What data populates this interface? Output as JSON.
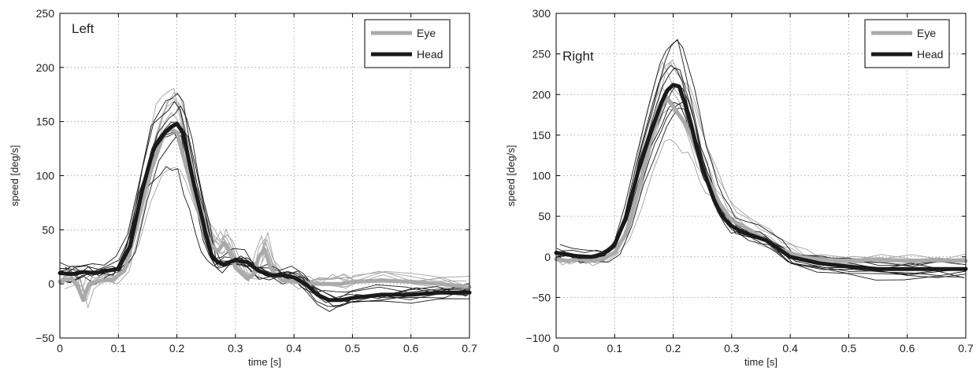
{
  "chart_data": [
    {
      "type": "line",
      "panel_label": "Left",
      "xlabel": "time [s]",
      "ylabel": "speed [deg/s]",
      "xlim": [
        0,
        0.7
      ],
      "ylim": [
        -50,
        250
      ],
      "xticks": [
        0,
        0.1,
        0.2,
        0.3,
        0.4,
        0.5,
        0.6,
        0.7
      ],
      "xtick_labels": [
        "0",
        "0.1",
        "0.2",
        "0.3",
        "0.4",
        "0.5",
        "0.6",
        "0.7"
      ],
      "yticks": [
        -50,
        0,
        50,
        100,
        150,
        200,
        250
      ],
      "ytick_labels": [
        "−50",
        "0",
        "50",
        "100",
        "150",
        "200",
        "250"
      ],
      "grid": true,
      "legend_position": "top-right",
      "legend": [
        {
          "label": "Eye",
          "color": "#aaaaaa"
        },
        {
          "label": "Head",
          "color": "#1a1a1a"
        }
      ],
      "series": [
        {
          "name": "Eye",
          "color": "#aaaaaa",
          "x": [
            0,
            0.02,
            0.03,
            0.04,
            0.05,
            0.07,
            0.09,
            0.11,
            0.13,
            0.15,
            0.17,
            0.18,
            0.19,
            0.2,
            0.21,
            0.22,
            0.23,
            0.24,
            0.25,
            0.26,
            0.27,
            0.28,
            0.29,
            0.3,
            0.31,
            0.32,
            0.33,
            0.34,
            0.35,
            0.36,
            0.37,
            0.38,
            0.4,
            0.42,
            0.44,
            0.46,
            0.48,
            0.5,
            0.55,
            0.6,
            0.65,
            0.7
          ],
          "y": [
            2,
            5,
            -2,
            -15,
            0,
            3,
            4,
            12,
            50,
            95,
            128,
            140,
            143,
            140,
            120,
            100,
            80,
            62,
            45,
            35,
            30,
            38,
            30,
            15,
            10,
            5,
            8,
            25,
            32,
            15,
            8,
            3,
            2,
            1,
            0,
            0,
            0,
            2,
            3,
            2,
            0,
            -3
          ]
        },
        {
          "name": "Head",
          "color": "#1a1a1a",
          "x": [
            0,
            0.02,
            0.04,
            0.06,
            0.08,
            0.1,
            0.12,
            0.14,
            0.16,
            0.18,
            0.19,
            0.2,
            0.21,
            0.22,
            0.23,
            0.24,
            0.25,
            0.26,
            0.27,
            0.28,
            0.3,
            0.32,
            0.34,
            0.36,
            0.38,
            0.4,
            0.42,
            0.44,
            0.46,
            0.48,
            0.5,
            0.55,
            0.6,
            0.65,
            0.7
          ],
          "y": [
            10,
            9,
            11,
            10,
            12,
            14,
            35,
            85,
            125,
            140,
            145,
            148,
            140,
            115,
            90,
            68,
            45,
            25,
            20,
            18,
            22,
            20,
            12,
            8,
            8,
            6,
            0,
            -10,
            -15,
            -15,
            -13,
            -10,
            -10,
            -8,
            -8
          ]
        }
      ]
    },
    {
      "type": "line",
      "panel_label": "Right",
      "xlabel": "time [s]",
      "ylabel": "speed [deg/s]",
      "xlim": [
        0,
        0.7
      ],
      "ylim": [
        -100,
        300
      ],
      "xticks": [
        0,
        0.1,
        0.2,
        0.3,
        0.4,
        0.5,
        0.6,
        0.7
      ],
      "xtick_labels": [
        "0",
        "0.1",
        "0.2",
        "0.3",
        "0.4",
        "0.5",
        "0.6",
        "0.7"
      ],
      "yticks": [
        -100,
        -50,
        0,
        50,
        100,
        150,
        200,
        250,
        300
      ],
      "ytick_labels": [
        "−100",
        "−50",
        "0",
        "50",
        "100",
        "150",
        "200",
        "250",
        "300"
      ],
      "grid": true,
      "legend_position": "top-right",
      "legend": [
        {
          "label": "Eye",
          "color": "#aaaaaa"
        },
        {
          "label": "Head",
          "color": "#1a1a1a"
        }
      ],
      "series": [
        {
          "name": "Eye",
          "color": "#aaaaaa",
          "x": [
            0,
            0.02,
            0.04,
            0.06,
            0.08,
            0.1,
            0.12,
            0.14,
            0.16,
            0.18,
            0.19,
            0.2,
            0.21,
            0.22,
            0.23,
            0.24,
            0.25,
            0.26,
            0.27,
            0.28,
            0.29,
            0.3,
            0.32,
            0.34,
            0.36,
            0.38,
            0.4,
            0.42,
            0.45,
            0.5,
            0.55,
            0.6,
            0.65,
            0.7
          ],
          "y": [
            -3,
            -5,
            -3,
            -5,
            -3,
            5,
            30,
            80,
            140,
            185,
            195,
            185,
            175,
            165,
            150,
            130,
            110,
            95,
            80,
            65,
            55,
            45,
            38,
            28,
            20,
            10,
            5,
            0,
            -3,
            -5,
            -3,
            -5,
            -4,
            -5
          ]
        },
        {
          "name": "Head",
          "color": "#1a1a1a",
          "x": [
            0,
            0.02,
            0.04,
            0.06,
            0.08,
            0.1,
            0.12,
            0.14,
            0.16,
            0.17,
            0.18,
            0.19,
            0.2,
            0.21,
            0.22,
            0.23,
            0.24,
            0.25,
            0.26,
            0.27,
            0.28,
            0.29,
            0.3,
            0.32,
            0.34,
            0.36,
            0.38,
            0.4,
            0.45,
            0.5,
            0.55,
            0.6,
            0.65,
            0.7
          ],
          "y": [
            5,
            3,
            0,
            0,
            3,
            15,
            50,
            105,
            150,
            170,
            190,
            205,
            212,
            210,
            190,
            165,
            135,
            110,
            90,
            70,
            55,
            45,
            38,
            30,
            25,
            20,
            10,
            0,
            -8,
            -12,
            -15,
            -15,
            -15,
            -15
          ]
        }
      ]
    }
  ]
}
